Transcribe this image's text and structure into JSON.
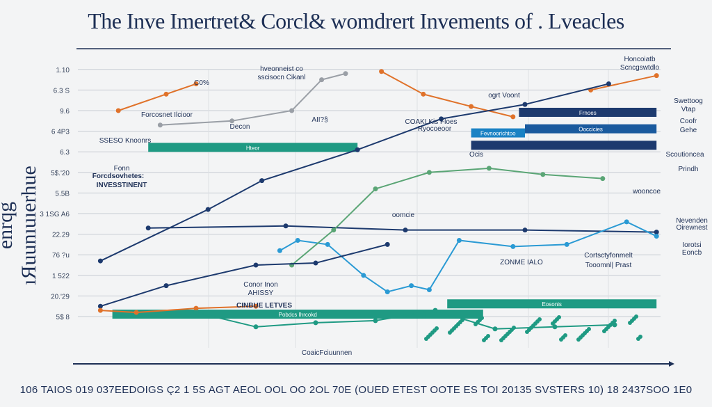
{
  "chart_data": {
    "type": "line",
    "title": "The Inve Imertret& Corcl& womdrert Invements of . Lveacles",
    "ylabel": "enrqg ıЯuunıuıerhue",
    "xlabel": "",
    "x_tick_text": "106 TAIOS 019 037EEDOIGS Ç2 1 5S AGT AEOL OOL OO 2OL 70E (OUED ETEST OOTE ES TOI 20135 SVSTERS 10) 18 2437SOO 1E0",
    "y_ticks": [
      "5$ 8",
      "20.'29",
      "1 522",
      "76 ?u",
      "22.29",
      "3 1SG A6",
      "5.5B",
      "5$.'20",
      "6.3",
      "6 4P3",
      "9.6",
      "6.3 S",
      "1.10"
    ],
    "grid": true,
    "colors": {
      "navy": "#1d3a6e",
      "orange": "#e0722a",
      "gray": "#9a9fa6",
      "lightblue": "#2a9ad4",
      "green": "#5aa575",
      "teal": "#1f9a83"
    },
    "series": [
      {
        "color": "orange",
        "x": [
          7,
          15,
          20
        ],
        "y": [
          10,
          10.8,
          11.3
        ]
      },
      {
        "color": "orange",
        "x": [
          51,
          58,
          66,
          73
        ],
        "y": [
          11.9,
          10.8,
          10.2,
          9.7
        ]
      },
      {
        "color": "orange",
        "x": [
          86,
          97
        ],
        "y": [
          11,
          11.7
        ]
      },
      {
        "color": "navy",
        "x": [
          4,
          22,
          31,
          47,
          61,
          75,
          89
        ],
        "y": [
          2.7,
          5.2,
          6.6,
          8.1,
          9.6,
          10.3,
          11.3
        ]
      },
      {
        "color": "gray",
        "x": [
          14,
          26,
          36,
          41,
          45
        ],
        "y": [
          9.3,
          9.5,
          10,
          11.5,
          11.8
        ]
      },
      {
        "color": "navy",
        "x": [
          12,
          35,
          55,
          75,
          97
        ],
        "y": [
          4.3,
          4.4,
          4.2,
          4.2,
          4.1
        ]
      },
      {
        "color": "lightblue",
        "x": [
          34,
          37,
          42,
          48,
          52,
          56,
          59,
          64,
          73,
          82,
          92,
          97
        ],
        "y": [
          3.2,
          3.7,
          3.5,
          2,
          1.2,
          1.5,
          1.3,
          3.7,
          3.4,
          3.5,
          4.6,
          3.9
        ]
      },
      {
        "color": "green",
        "x": [
          36,
          43,
          50,
          59,
          69,
          78,
          88
        ],
        "y": [
          2.5,
          4.2,
          6.2,
          7,
          7.2,
          6.9,
          6.7
        ]
      },
      {
        "color": "navy",
        "x": [
          4,
          15,
          30,
          40,
          52
        ],
        "y": [
          0.5,
          1.5,
          2.5,
          2.6,
          3.5
        ]
      },
      {
        "color": "orange",
        "x": [
          4,
          10,
          20,
          30
        ],
        "y": [
          0.3,
          0.2,
          0.4,
          0.5
        ]
      },
      {
        "color": "teal",
        "x": [
          20,
          30,
          40,
          50,
          60,
          70,
          80,
          90
        ],
        "y": [
          0.2,
          -0.5,
          -0.3,
          -0.2,
          0.3,
          -0.6,
          -0.5,
          -0.4
        ]
      }
    ],
    "bars": [
      {
        "label": "Hteor",
        "color": "#1f9a83",
        "x0": 12,
        "x1": 47,
        "y": 8.2
      },
      {
        "label": "Frnoes",
        "color": "#1d3a6e",
        "x0": 74,
        "x1": 97,
        "y": 9.9
      },
      {
        "label": "Ooccicies",
        "color": "#1a5a9e",
        "x0": 75,
        "x1": 97,
        "y": 9.1
      },
      {
        "label": "",
        "color": "#1d3a6e",
        "x0": 66,
        "x1": 97,
        "y": 8.3
      },
      {
        "label": "Fevnoorichtoo",
        "color": "#1a82c4",
        "x0": 66,
        "x1": 75,
        "y": 8.9
      },
      {
        "label": "Eosonis",
        "color": "#1f9a83",
        "x0": 62,
        "x1": 97,
        "y": 0.6
      },
      {
        "label": "Pobdcs Ihrcokd",
        "color": "#1f9a83",
        "x0": 6,
        "x1": 68,
        "y": 0.1
      }
    ],
    "annotations": [
      "hveonneist co",
      "sscisocn Cikanl",
      "C0%",
      "Forcosnet Ilcioor",
      "Decon",
      "AII?§",
      "SSESO Knoonrs",
      "Fonn",
      "Forcdsovhetes:",
      "INVESSTINENT",
      "COAKLKis Floes",
      "Ryocoeoor",
      "ogrt Voont",
      "Ocis",
      "Honcoiatb",
      "Scncgswtdlo",
      "Swettoog",
      "Vtap",
      "Coofr",
      "Gehe",
      "Scoutioncea",
      "Prindh",
      "wooncoe",
      "Nevenden",
      "Oirewnest",
      "Iorotsi",
      "Eoncb",
      "ZONME IALO",
      "Cortsctyfonmelt",
      "Tooomnl| Prast",
      "Conor Inon",
      "AHISSY",
      "CINBUE LETVES",
      "CoaicFciuunnen",
      "oomcie"
    ]
  }
}
